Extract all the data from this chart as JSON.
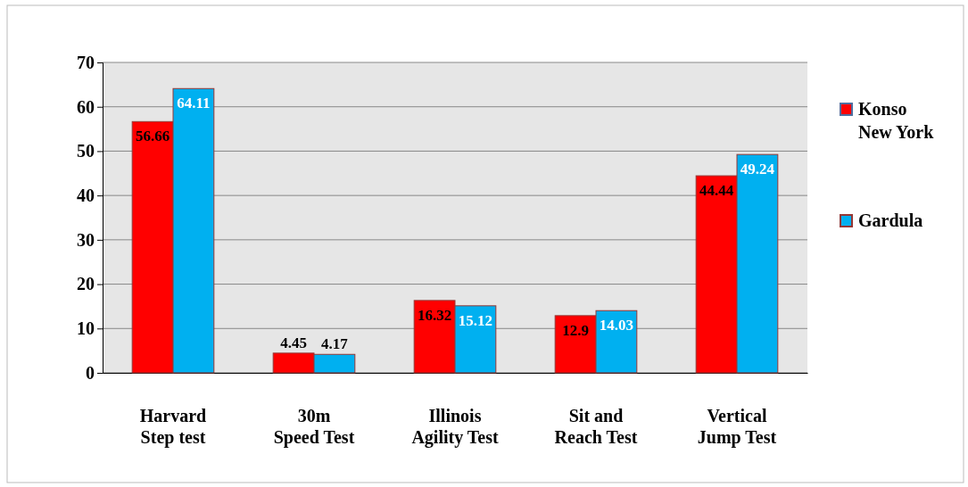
{
  "chart_data": {
    "type": "bar",
    "categories": [
      "Harvard Step test",
      "30m Speed Test",
      "Illinois Agility Test",
      "Sit and Reach Test",
      "Vertical Jump Test"
    ],
    "series": [
      {
        "name": "Konso New York",
        "color": "#ff0000",
        "values": [
          56.66,
          4.45,
          16.32,
          12.9,
          44.44
        ]
      },
      {
        "name": "Gardula",
        "color": "#00b0f0",
        "values": [
          64.11,
          4.17,
          15.12,
          14.03,
          49.24
        ]
      }
    ],
    "ylim": [
      0,
      70
    ],
    "yticks": [
      0,
      10,
      20,
      30,
      40,
      50,
      60,
      70
    ],
    "grid": "y",
    "legend": "right",
    "data_labels": true
  }
}
